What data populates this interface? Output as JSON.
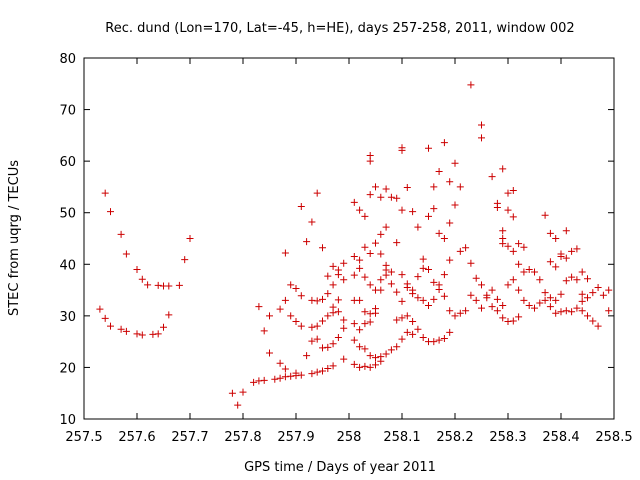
{
  "chart_data": {
    "type": "scatter",
    "title": "Rec. dund (Lon=170, Lat=-45, h=HE), days 257-258, 2011, window 002",
    "xlabel": "GPS time / Days of year 2011",
    "ylabel": "STEC from uqrg / TECUs",
    "xlim": [
      257.5,
      258.5
    ],
    "ylim": [
      10,
      80
    ],
    "xticks": [
      257.5,
      257.6,
      257.7,
      257.8,
      257.9,
      258,
      258.1,
      258.2,
      258.3,
      258.4,
      258.5
    ],
    "xtick_labels": [
      "257.5",
      "257.6",
      "257.7",
      "257.8",
      "257.9",
      "258",
      "258.1",
      "258.2",
      "258.3",
      "258.4",
      "258.5"
    ],
    "yticks": [
      10,
      20,
      30,
      40,
      50,
      60,
      70,
      80
    ],
    "ytick_labels": [
      "10",
      "20",
      "30",
      "40",
      "50",
      "60",
      "70",
      "80"
    ],
    "grid": false,
    "marker": "plus",
    "color": "#cc0000",
    "points": [
      [
        257.53,
        31.3
      ],
      [
        257.54,
        29.5
      ],
      [
        257.55,
        28.0
      ],
      [
        257.57,
        27.4
      ],
      [
        257.58,
        27.0
      ],
      [
        257.6,
        26.5
      ],
      [
        257.61,
        26.3
      ],
      [
        257.63,
        26.4
      ],
      [
        257.64,
        26.5
      ],
      [
        257.65,
        27.8
      ],
      [
        257.66,
        30.2
      ],
      [
        257.69,
        40.9
      ],
      [
        257.7,
        45.0
      ],
      [
        257.54,
        53.8
      ],
      [
        257.55,
        50.2
      ],
      [
        257.57,
        45.8
      ],
      [
        257.58,
        42.0
      ],
      [
        257.6,
        39.0
      ],
      [
        257.61,
        37.1
      ],
      [
        257.62,
        36.0
      ],
      [
        257.64,
        35.9
      ],
      [
        257.65,
        35.8
      ],
      [
        257.66,
        35.8
      ],
      [
        257.68,
        35.9
      ],
      [
        257.78,
        15.0
      ],
      [
        257.79,
        12.7
      ],
      [
        257.8,
        15.2
      ],
      [
        257.82,
        17.1
      ],
      [
        257.83,
        17.4
      ],
      [
        257.84,
        17.5
      ],
      [
        257.86,
        17.7
      ],
      [
        257.87,
        17.9
      ],
      [
        257.88,
        18.2
      ],
      [
        257.89,
        18.3
      ],
      [
        257.9,
        18.4
      ],
      [
        257.91,
        18.5
      ],
      [
        257.93,
        18.8
      ],
      [
        257.94,
        19.1
      ],
      [
        257.95,
        19.3
      ],
      [
        257.96,
        19.8
      ],
      [
        257.97,
        20.3
      ],
      [
        257.99,
        21.6
      ],
      [
        257.83,
        31.8
      ],
      [
        257.84,
        27.1
      ],
      [
        257.85,
        22.8
      ],
      [
        257.87,
        20.8
      ],
      [
        257.88,
        19.7
      ],
      [
        257.9,
        18.9
      ],
      [
        257.85,
        30.0
      ],
      [
        257.87,
        31.3
      ],
      [
        257.88,
        33.0
      ],
      [
        257.89,
        36.0
      ],
      [
        257.9,
        35.3
      ],
      [
        257.91,
        33.9
      ],
      [
        257.93,
        33.0
      ],
      [
        257.94,
        32.9
      ],
      [
        257.95,
        33.2
      ],
      [
        257.96,
        34.3
      ],
      [
        257.97,
        36.0
      ],
      [
        257.98,
        38.0
      ],
      [
        257.99,
        40.2
      ],
      [
        257.88,
        42.2
      ],
      [
        257.89,
        30.0
      ],
      [
        257.9,
        28.9
      ],
      [
        257.91,
        28.0
      ],
      [
        257.93,
        27.8
      ],
      [
        257.94,
        28.0
      ],
      [
        257.95,
        29.0
      ],
      [
        257.96,
        30.0
      ],
      [
        257.97,
        31.7
      ],
      [
        257.98,
        33.1
      ],
      [
        257.91,
        51.2
      ],
      [
        257.92,
        44.4
      ],
      [
        257.93,
        48.2
      ],
      [
        257.94,
        53.8
      ],
      [
        257.95,
        43.2
      ],
      [
        257.96,
        37.7
      ],
      [
        257.97,
        39.6
      ],
      [
        257.98,
        38.9
      ],
      [
        257.99,
        37.0
      ],
      [
        257.92,
        22.3
      ],
      [
        257.93,
        25.1
      ],
      [
        257.94,
        25.5
      ],
      [
        257.95,
        23.8
      ],
      [
        257.96,
        23.9
      ],
      [
        257.97,
        24.6
      ],
      [
        257.98,
        25.8
      ],
      [
        257.99,
        27.6
      ],
      [
        257.97,
        30.6
      ],
      [
        257.98,
        30.8
      ],
      [
        257.99,
        29.2
      ],
      [
        258.01,
        20.6
      ],
      [
        258.02,
        20.0
      ],
      [
        258.03,
        20.2
      ],
      [
        258.04,
        20.0
      ],
      [
        258.05,
        20.5
      ],
      [
        258.06,
        21.2
      ],
      [
        258.07,
        22.6
      ],
      [
        258.08,
        23.4
      ],
      [
        258.09,
        24.0
      ],
      [
        258.1,
        25.5
      ],
      [
        258.11,
        26.8
      ],
      [
        258.12,
        26.4
      ],
      [
        258.01,
        25.3
      ],
      [
        258.02,
        24.0
      ],
      [
        258.03,
        23.6
      ],
      [
        258.04,
        22.3
      ],
      [
        258.05,
        21.9
      ],
      [
        258.06,
        22.1
      ],
      [
        258.01,
        28.5
      ],
      [
        258.02,
        27.3
      ],
      [
        258.03,
        28.5
      ],
      [
        258.04,
        28.8
      ],
      [
        258.05,
        30.5
      ],
      [
        258.01,
        33.0
      ],
      [
        258.02,
        33.0
      ],
      [
        258.03,
        30.8
      ],
      [
        258.04,
        30.4
      ],
      [
        258.05,
        31.4
      ],
      [
        258.06,
        35.0
      ],
      [
        258.07,
        37.9
      ],
      [
        258.08,
        38.5
      ],
      [
        258.01,
        37.9
      ],
      [
        258.02,
        39.2
      ],
      [
        258.03,
        37.5
      ],
      [
        258.04,
        36.0
      ],
      [
        258.05,
        35.0
      ],
      [
        258.06,
        37.0
      ],
      [
        258.07,
        38.9
      ],
      [
        258.01,
        41.5
      ],
      [
        258.02,
        40.8
      ],
      [
        258.03,
        43.3
      ],
      [
        258.04,
        42.1
      ],
      [
        258.05,
        44.1
      ],
      [
        258.06,
        45.8
      ],
      [
        258.07,
        47.2
      ],
      [
        258.01,
        52.0
      ],
      [
        258.02,
        50.5
      ],
      [
        258.03,
        49.3
      ],
      [
        258.04,
        53.5
      ],
      [
        258.05,
        55.0
      ],
      [
        258.06,
        53.0
      ],
      [
        258.07,
        54.6
      ],
      [
        258.08,
        53.0
      ],
      [
        258.09,
        52.8
      ],
      [
        258.04,
        61.1
      ],
      [
        258.04,
        60.0
      ],
      [
        258.1,
        62.6
      ],
      [
        258.1,
        62.1
      ],
      [
        258.06,
        42.0
      ],
      [
        258.07,
        39.8
      ],
      [
        258.08,
        36.2
      ],
      [
        258.09,
        34.6
      ],
      [
        258.1,
        32.8
      ],
      [
        258.11,
        35.5
      ],
      [
        258.12,
        35.0
      ],
      [
        258.13,
        37.6
      ],
      [
        258.14,
        39.2
      ],
      [
        258.09,
        44.2
      ],
      [
        258.1,
        38.0
      ],
      [
        258.11,
        36.2
      ],
      [
        258.12,
        34.3
      ],
      [
        258.13,
        33.5
      ],
      [
        258.1,
        50.5
      ],
      [
        258.11,
        54.9
      ],
      [
        258.12,
        50.2
      ],
      [
        258.13,
        47.2
      ],
      [
        258.09,
        29.2
      ],
      [
        258.1,
        29.6
      ],
      [
        258.11,
        30.0
      ],
      [
        258.12,
        28.9
      ],
      [
        258.13,
        27.4
      ],
      [
        258.14,
        25.8
      ],
      [
        258.15,
        25.0
      ],
      [
        258.16,
        25.0
      ],
      [
        258.17,
        25.3
      ],
      [
        258.18,
        25.6
      ],
      [
        258.19,
        26.8
      ],
      [
        258.2,
        30.0
      ],
      [
        258.14,
        33.0
      ],
      [
        258.15,
        32.0
      ],
      [
        258.16,
        33.2
      ],
      [
        258.17,
        35.1
      ],
      [
        258.18,
        38.0
      ],
      [
        258.19,
        40.8
      ],
      [
        258.14,
        41.0
      ],
      [
        258.15,
        39.0
      ],
      [
        258.16,
        36.5
      ],
      [
        258.17,
        36.0
      ],
      [
        258.18,
        33.8
      ],
      [
        258.19,
        31.0
      ],
      [
        258.15,
        49.3
      ],
      [
        258.16,
        50.8
      ],
      [
        258.17,
        46.0
      ],
      [
        258.18,
        45.0
      ],
      [
        258.19,
        48.0
      ],
      [
        258.2,
        51.5
      ],
      [
        258.21,
        55.0
      ],
      [
        258.15,
        62.5
      ],
      [
        258.16,
        55.0
      ],
      [
        258.17,
        58.0
      ],
      [
        258.18,
        63.6
      ],
      [
        258.19,
        56.0
      ],
      [
        258.2,
        59.6
      ],
      [
        258.21,
        42.5
      ],
      [
        258.22,
        43.2
      ],
      [
        258.23,
        40.2
      ],
      [
        258.24,
        37.3
      ],
      [
        258.25,
        36.0
      ],
      [
        258.26,
        33.5
      ],
      [
        258.27,
        31.8
      ],
      [
        258.28,
        31.0
      ],
      [
        258.29,
        29.6
      ],
      [
        258.3,
        28.9
      ],
      [
        258.31,
        29.0
      ],
      [
        258.32,
        29.8
      ],
      [
        258.23,
        74.8
      ],
      [
        258.25,
        67.0
      ],
      [
        258.25,
        64.5
      ],
      [
        258.27,
        57.0
      ],
      [
        258.28,
        51.8
      ],
      [
        258.28,
        51.0
      ],
      [
        258.29,
        45.0
      ],
      [
        258.21,
        30.5
      ],
      [
        258.22,
        31.0
      ],
      [
        258.23,
        34.0
      ],
      [
        258.24,
        33.0
      ],
      [
        258.25,
        31.5
      ],
      [
        258.26,
        34.0
      ],
      [
        258.27,
        35.0
      ],
      [
        258.28,
        33.2
      ],
      [
        258.29,
        32.0
      ],
      [
        258.29,
        58.5
      ],
      [
        258.3,
        53.8
      ],
      [
        258.3,
        50.5
      ],
      [
        258.31,
        49.2
      ],
      [
        258.31,
        54.3
      ],
      [
        258.32,
        44.0
      ],
      [
        258.33,
        43.3
      ],
      [
        258.29,
        46.5
      ],
      [
        258.29,
        44.0
      ],
      [
        258.3,
        43.5
      ],
      [
        258.31,
        42.5
      ],
      [
        258.32,
        40.0
      ],
      [
        258.33,
        38.5
      ],
      [
        258.3,
        36.0
      ],
      [
        258.31,
        37.0
      ],
      [
        258.32,
        35.0
      ],
      [
        258.33,
        33.0
      ],
      [
        258.34,
        32.0
      ],
      [
        258.35,
        31.5
      ],
      [
        258.36,
        32.5
      ],
      [
        258.37,
        33.0
      ],
      [
        258.38,
        31.8
      ],
      [
        258.39,
        30.5
      ],
      [
        258.4,
        30.8
      ],
      [
        258.41,
        31.0
      ],
      [
        258.34,
        39.0
      ],
      [
        258.35,
        38.5
      ],
      [
        258.36,
        37.0
      ],
      [
        258.37,
        34.5
      ],
      [
        258.38,
        33.5
      ],
      [
        258.39,
        33.0
      ],
      [
        258.4,
        34.2
      ],
      [
        258.41,
        36.8
      ],
      [
        258.42,
        37.5
      ],
      [
        258.43,
        37.0
      ],
      [
        258.44,
        34.2
      ],
      [
        258.37,
        49.5
      ],
      [
        258.38,
        46.0
      ],
      [
        258.39,
        45.0
      ],
      [
        258.4,
        41.5
      ],
      [
        258.41,
        41.2
      ],
      [
        258.42,
        42.5
      ],
      [
        258.43,
        43.0
      ],
      [
        258.44,
        38.5
      ],
      [
        258.45,
        37.2
      ],
      [
        258.38,
        40.5
      ],
      [
        258.39,
        39.5
      ],
      [
        258.4,
        42.0
      ],
      [
        258.41,
        46.5
      ],
      [
        258.42,
        30.8
      ],
      [
        258.43,
        31.5
      ],
      [
        258.44,
        32.8
      ],
      [
        258.45,
        33.5
      ],
      [
        258.46,
        34.5
      ],
      [
        258.47,
        35.5
      ],
      [
        258.48,
        34.0
      ],
      [
        258.49,
        35.0
      ],
      [
        258.49,
        31.0
      ],
      [
        258.44,
        31.0
      ],
      [
        258.45,
        30.0
      ],
      [
        258.46,
        29.0
      ],
      [
        258.47,
        28.0
      ]
    ]
  }
}
